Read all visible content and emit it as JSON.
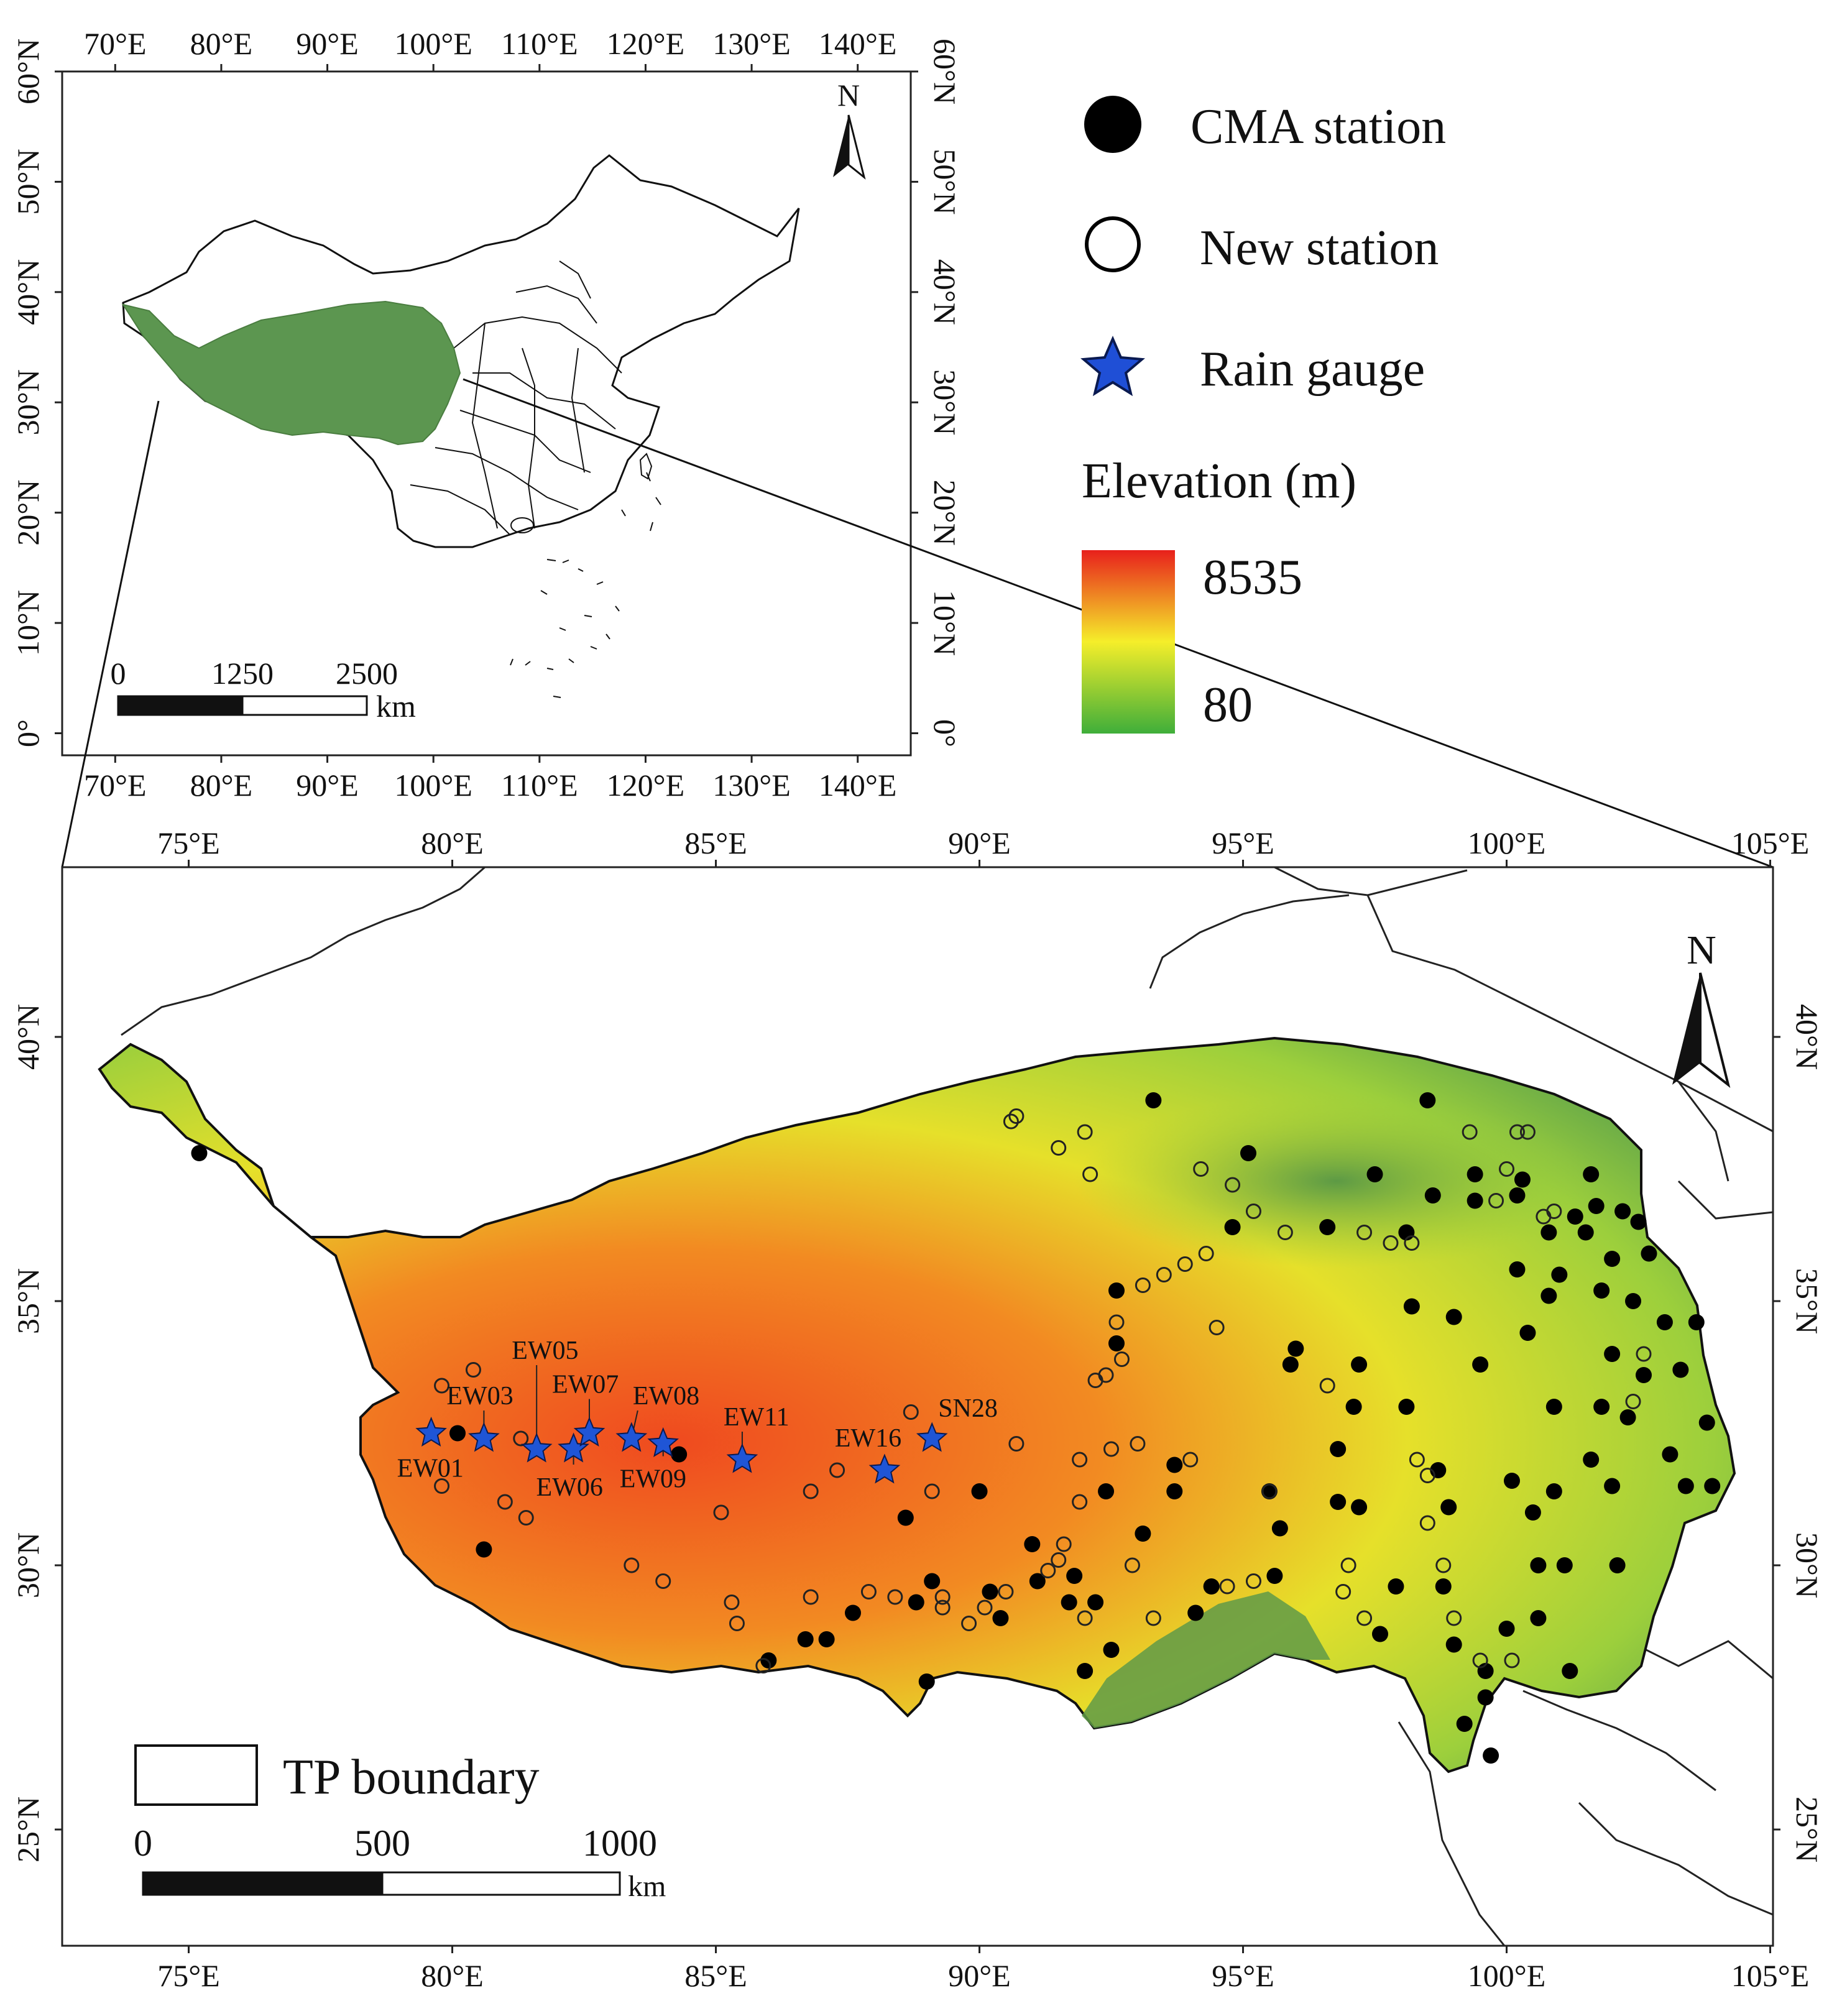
{
  "inset": {
    "lon_labels": [
      "70°E",
      "80°E",
      "90°E",
      "100°E",
      "110°E",
      "120°E",
      "130°E",
      "140°E"
    ],
    "lat_labels": [
      "0°",
      "10°N",
      "20°N",
      "30°N",
      "40°N",
      "50°N",
      "60°N"
    ],
    "north": "N",
    "scale_labels": [
      "0",
      "1250",
      "2500"
    ],
    "scale_unit": "km"
  },
  "legend": {
    "cma": "CMA station",
    "new": "New station",
    "rain": "Rain  gauge",
    "elev_title": "Elevation (m)",
    "elev_max": "8535",
    "elev_min": "80",
    "colors": {
      "high": "#e8201c",
      "mid": "#f5ee2a",
      "low": "#3fae3a"
    }
  },
  "main": {
    "lon_labels": [
      "75°E",
      "80°E",
      "85°E",
      "90°E",
      "95°E",
      "100°E",
      "105°E"
    ],
    "lat_labels": [
      "25°N",
      "30°N",
      "35°N",
      "40°N"
    ],
    "north": "N",
    "tp_boundary": "TP boundary",
    "scale_labels": [
      "0",
      "500",
      "1000"
    ],
    "scale_unit": "km",
    "gauges": [
      {
        "name": "EW01",
        "lon": 79.6,
        "lat": 32.5
      },
      {
        "name": "EW03",
        "lon": 80.6,
        "lat": 32.4
      },
      {
        "name": "EW05",
        "lon": 81.6,
        "lat": 32.2
      },
      {
        "name": "EW06",
        "lon": 82.3,
        "lat": 32.2
      },
      {
        "name": "EW07",
        "lon": 82.6,
        "lat": 32.5
      },
      {
        "name": "EW08",
        "lon": 83.4,
        "lat": 32.4
      },
      {
        "name": "EW09",
        "lon": 84.0,
        "lat": 32.3
      },
      {
        "name": "EW11",
        "lon": 85.5,
        "lat": 32.0
      },
      {
        "name": "EW16",
        "lon": 88.2,
        "lat": 31.8
      },
      {
        "name": "SN28",
        "lon": 89.1,
        "lat": 32.4
      }
    ]
  }
}
